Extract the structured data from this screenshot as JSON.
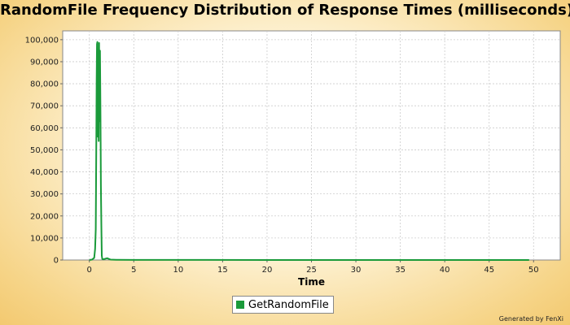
{
  "chart_data": {
    "type": "line",
    "title": "RandomFile Frequency Distribution of Response Times (milliseconds)",
    "xlabel": "Time",
    "ylabel": "RandomFile Frequency Distribution of Response Times (milliseconds)",
    "xlim": [
      -3,
      53
    ],
    "ylim": [
      0,
      104000
    ],
    "x_ticks": [
      0,
      5,
      10,
      15,
      20,
      25,
      30,
      35,
      40,
      45,
      50
    ],
    "y_ticks": [
      0,
      10000,
      20000,
      30000,
      40000,
      50000,
      60000,
      70000,
      80000,
      90000,
      100000
    ],
    "y_tick_labels": [
      "0",
      "10,000",
      "20,000",
      "30,000",
      "40,000",
      "50,000",
      "60,000",
      "70,000",
      "80,000",
      "90,000",
      "100,000"
    ],
    "grid": true,
    "legend_position": "bottom-center",
    "series": [
      {
        "name": "GetRandomFile",
        "color": "#1a9a3a",
        "x": [
          0.0,
          0.3,
          0.55,
          0.65,
          0.72,
          0.78,
          0.82,
          0.86,
          0.9,
          0.95,
          1.0,
          1.05,
          1.1,
          1.15,
          1.2,
          1.25,
          1.3,
          1.35,
          1.4,
          1.45,
          1.5,
          1.6,
          1.75,
          2.0,
          2.4,
          3.0,
          5.0,
          10.0,
          20.0,
          30.0,
          40.0,
          49.5
        ],
        "y": [
          0,
          200,
          1000,
          5000,
          14000,
          49000,
          82000,
          98000,
          99000,
          56000,
          95000,
          54000,
          98500,
          63000,
          95000,
          66000,
          34000,
          15000,
          2000,
          500,
          400,
          300,
          500,
          800,
          200,
          100,
          50,
          20,
          10,
          10,
          10,
          10
        ]
      }
    ]
  },
  "legend": {
    "label": "GetRandomFile",
    "swatch_color": "#1a9a3a"
  },
  "footer": {
    "generated_by": "Generated by FenXi"
  }
}
